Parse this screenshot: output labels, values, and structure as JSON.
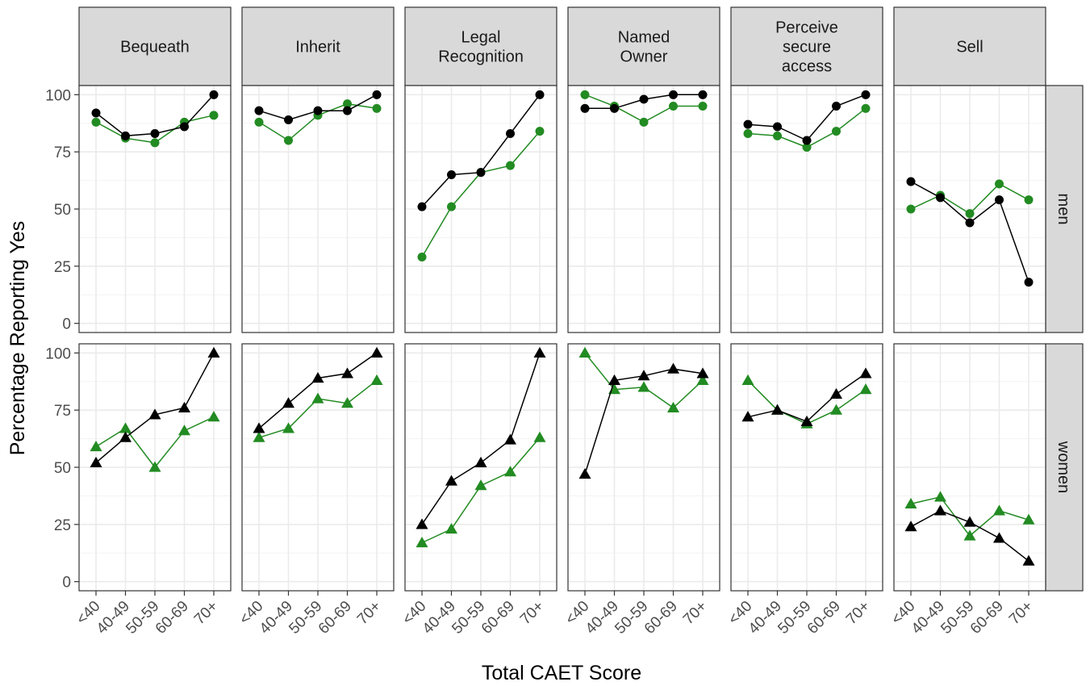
{
  "chart_data": {
    "type": "line",
    "xlabel": "Total CAET Score",
    "ylabel": "Percentage Reporting Yes",
    "categories": [
      "<40",
      "40-49",
      "50-59",
      "60-69",
      "70+"
    ],
    "yticks": [
      "0",
      "25",
      "50",
      "75",
      "100"
    ],
    "ylim": [
      -4,
      104
    ],
    "grid": true,
    "facet_columns": [
      "Bequeath",
      "Inherit",
      "Legal Recognition",
      "Named Owner",
      "Perceive secure access",
      "Sell"
    ],
    "facet_column_lines": [
      [
        "Bequeath"
      ],
      [
        "Inherit"
      ],
      [
        "Legal",
        "Recognition"
      ],
      [
        "Named",
        "Owner"
      ],
      [
        "Perceive",
        "secure",
        "access"
      ],
      [
        "Sell"
      ]
    ],
    "facet_rows": [
      "men",
      "women"
    ],
    "colors": {
      "black_series": "#000000",
      "green_series": "#228B22",
      "strip_fill": "#d9d9d9",
      "grid": "#ebebeb",
      "panel_border": "#333333"
    },
    "panels": [
      {
        "col": "Bequeath",
        "row": "men",
        "marker": "circle",
        "black": [
          92,
          82,
          83,
          86,
          100
        ],
        "green": [
          88,
          81,
          79,
          88,
          91
        ]
      },
      {
        "col": "Inherit",
        "row": "men",
        "marker": "circle",
        "black": [
          93,
          89,
          93,
          93,
          100
        ],
        "green": [
          88,
          80,
          91,
          96,
          94
        ]
      },
      {
        "col": "Legal Recognition",
        "row": "men",
        "marker": "circle",
        "black": [
          51,
          65,
          66,
          83,
          100
        ],
        "green": [
          29,
          51,
          66,
          69,
          84
        ]
      },
      {
        "col": "Named Owner",
        "row": "men",
        "marker": "circle",
        "black": [
          94,
          94,
          98,
          100,
          100
        ],
        "green": [
          100,
          95,
          88,
          95,
          95
        ]
      },
      {
        "col": "Perceive secure access",
        "row": "men",
        "marker": "circle",
        "black": [
          87,
          86,
          80,
          95,
          100
        ],
        "green": [
          83,
          82,
          77,
          84,
          94
        ]
      },
      {
        "col": "Sell",
        "row": "men",
        "marker": "circle",
        "black": [
          62,
          55,
          44,
          54,
          18
        ],
        "green": [
          50,
          56,
          48,
          61,
          54
        ]
      },
      {
        "col": "Bequeath",
        "row": "women",
        "marker": "triangle",
        "black": [
          52,
          63,
          73,
          76,
          100
        ],
        "green": [
          59,
          67,
          50,
          66,
          72
        ]
      },
      {
        "col": "Inherit",
        "row": "women",
        "marker": "triangle",
        "black": [
          67,
          78,
          89,
          91,
          100
        ],
        "green": [
          63,
          67,
          80,
          78,
          88
        ]
      },
      {
        "col": "Legal Recognition",
        "row": "women",
        "marker": "triangle",
        "black": [
          25,
          44,
          52,
          62,
          100
        ],
        "green": [
          17,
          23,
          42,
          48,
          63
        ]
      },
      {
        "col": "Named Owner",
        "row": "women",
        "marker": "triangle",
        "black": [
          47,
          88,
          90,
          93,
          91
        ],
        "green": [
          100,
          84,
          85,
          76,
          88
        ]
      },
      {
        "col": "Perceive secure access",
        "row": "women",
        "marker": "triangle",
        "black": [
          72,
          75,
          70,
          82,
          91
        ],
        "green": [
          88,
          75,
          69,
          75,
          84
        ]
      },
      {
        "col": "Sell",
        "row": "women",
        "marker": "triangle",
        "black": [
          24,
          31,
          26,
          19,
          9
        ],
        "green": [
          34,
          37,
          20,
          31,
          27
        ]
      }
    ]
  }
}
